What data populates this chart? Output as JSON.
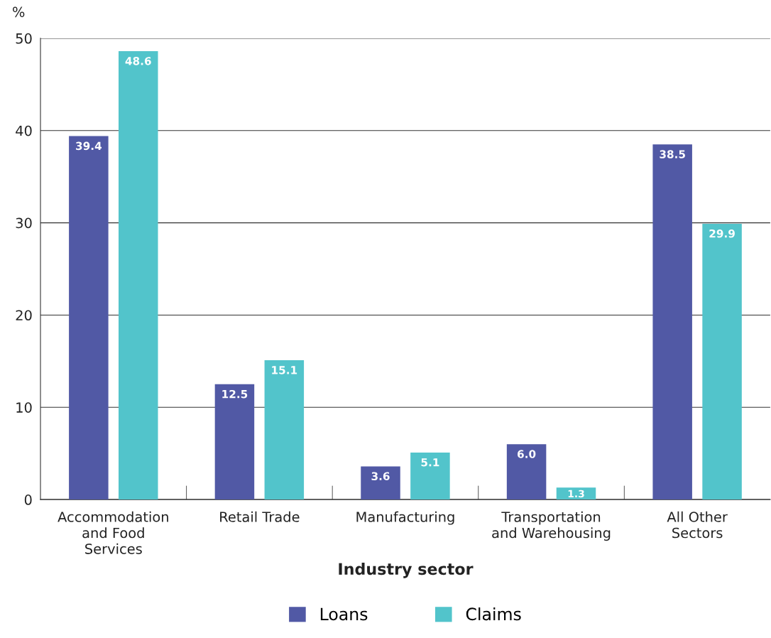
{
  "chart_data": {
    "type": "bar",
    "xlabel": "Industry sector",
    "ylabel": "%",
    "categories": [
      "Accommodation\nand Food\nServices",
      "Retail Trade",
      "Manufacturing",
      "Transportation\nand Warehousing",
      "All Other\nSectors"
    ],
    "series": [
      {
        "name": "Loans",
        "color": "#5159a5",
        "values": [
          39.4,
          12.5,
          3.6,
          6.0,
          38.5
        ],
        "value_labels": [
          "39.4",
          "12.5",
          "3.6",
          "6.0",
          "38.5"
        ]
      },
      {
        "name": "Claims",
        "color": "#52c4cb",
        "values": [
          48.6,
          15.1,
          5.1,
          1.3,
          29.9
        ],
        "value_labels": [
          "48.6",
          "15.1",
          "5.1",
          "1.3",
          "29.9"
        ]
      }
    ],
    "ylim": [
      0,
      50
    ],
    "yticks": [
      0,
      10,
      20,
      30,
      40,
      50
    ],
    "grid": "y",
    "legend": "bottom"
  }
}
